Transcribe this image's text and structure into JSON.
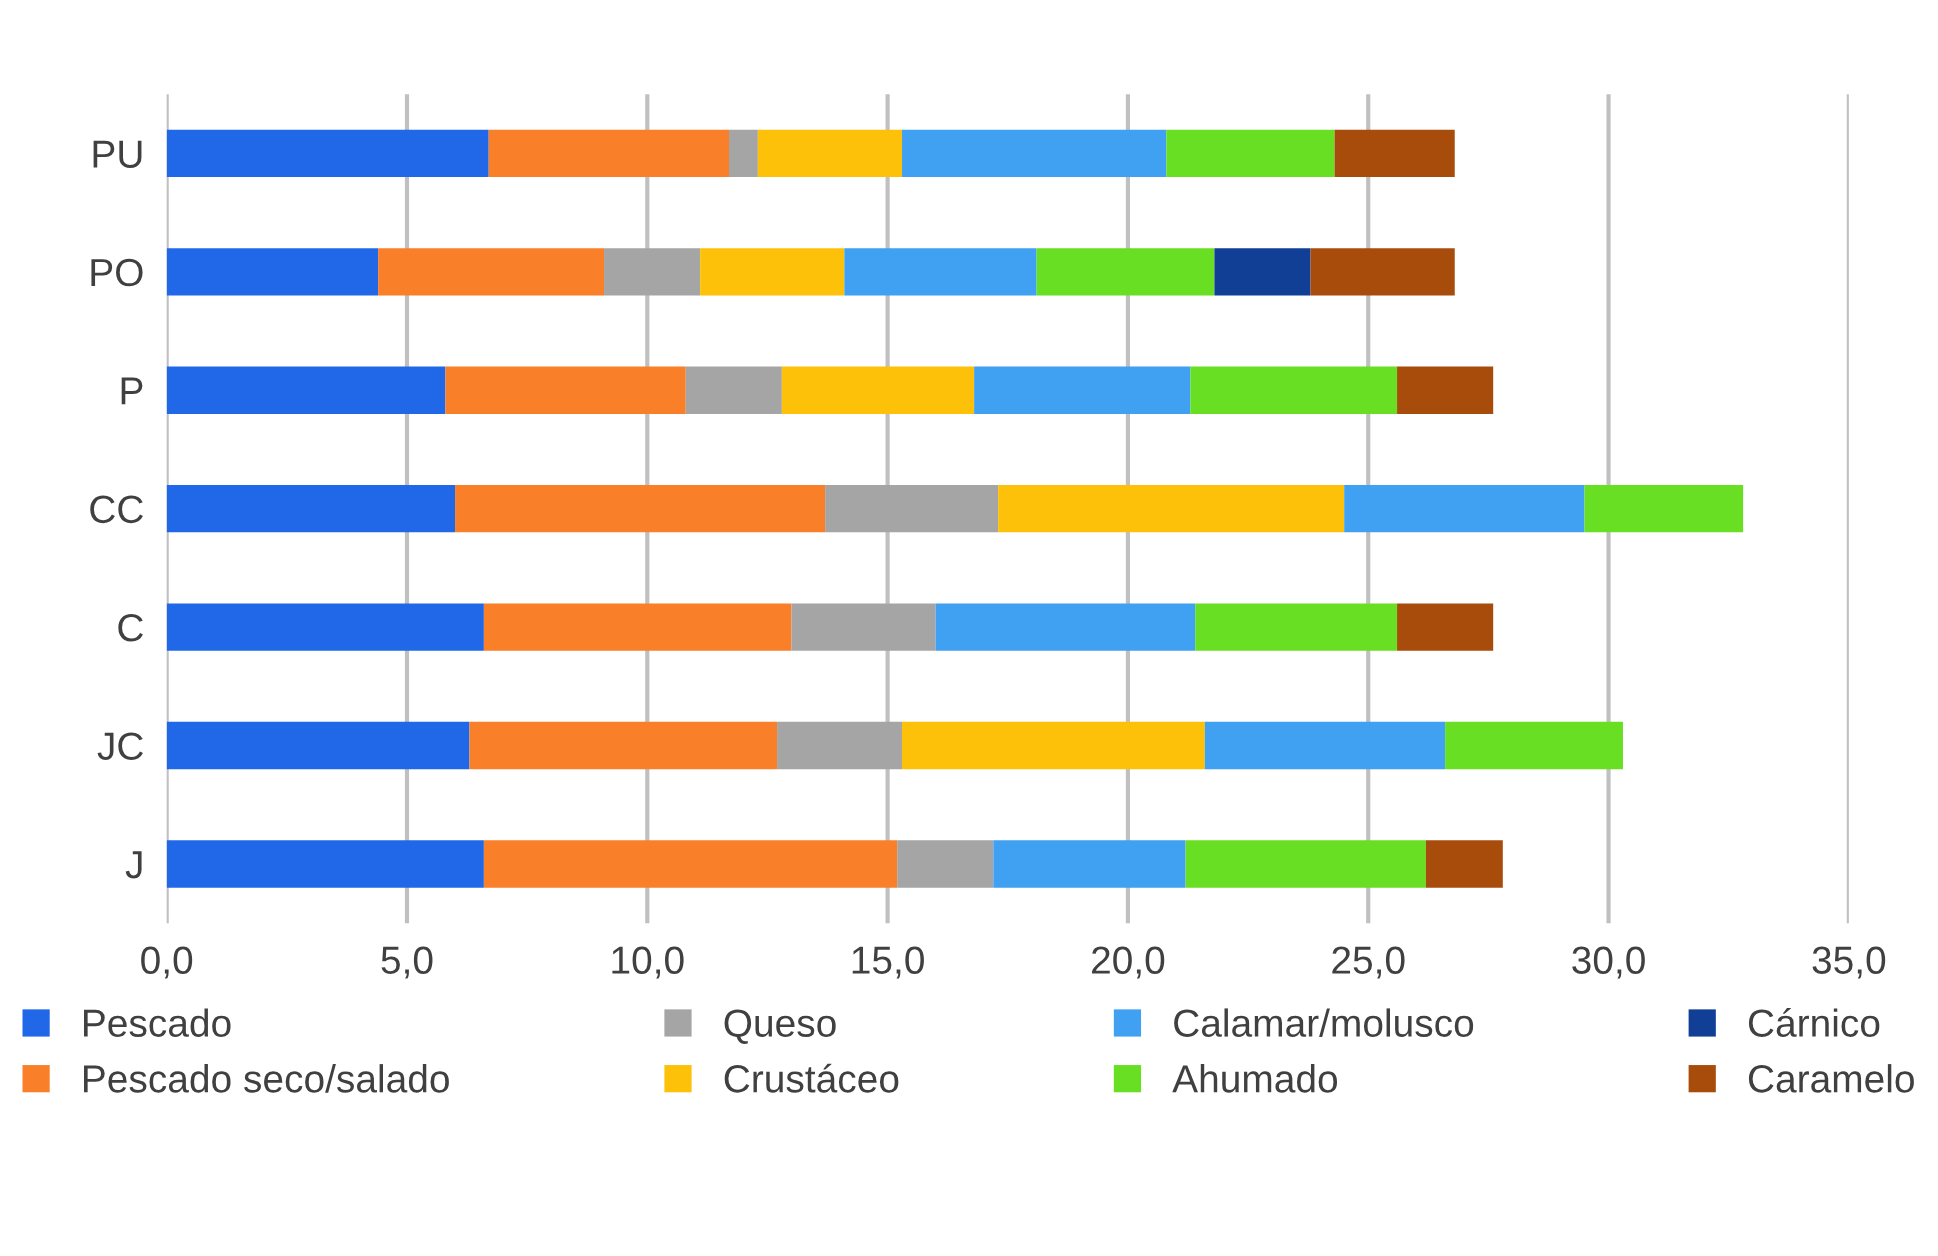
{
  "chart_data": {
    "type": "bar",
    "orientation": "horizontal",
    "stacked": true,
    "categories": [
      "PU",
      "PO",
      "P",
      "CC",
      "C",
      "JC",
      "J"
    ],
    "series": [
      {
        "name": "Pescado",
        "color": "#2068e8",
        "values": [
          6.7,
          4.4,
          5.8,
          6.0,
          6.6,
          6.3,
          6.6
        ]
      },
      {
        "name": "Pescado seco/salado",
        "color": "#f97f29",
        "values": [
          5.0,
          4.7,
          5.0,
          7.7,
          6.4,
          6.4,
          8.6
        ]
      },
      {
        "name": "Queso",
        "color": "#a5a5a5",
        "values": [
          0.6,
          2.0,
          2.0,
          3.6,
          3.0,
          2.6,
          2.0
        ]
      },
      {
        "name": "Crustáceo",
        "color": "#fdc10a",
        "values": [
          3.0,
          3.0,
          4.0,
          7.2,
          null,
          6.3,
          null
        ]
      },
      {
        "name": "Calamar/molusco",
        "color": "#40a0f2",
        "values": [
          5.5,
          4.0,
          4.5,
          5.0,
          5.4,
          5.0,
          4.0
        ]
      },
      {
        "name": "Ahumado",
        "color": "#68df22",
        "values": [
          3.5,
          3.7,
          4.3,
          3.3,
          4.2,
          3.7,
          5.0
        ]
      },
      {
        "name": "Cárnico",
        "color": "#123f96",
        "values": [
          null,
          2.0,
          null,
          null,
          null,
          null,
          null
        ]
      },
      {
        "name": "Caramelo",
        "color": "#a84c0c",
        "values": [
          2.5,
          3.0,
          2.0,
          null,
          2.0,
          null,
          1.6
        ]
      }
    ],
    "xlim": [
      0,
      35
    ],
    "xticks": [
      {
        "value": 0,
        "label": "0,0"
      },
      {
        "value": 5,
        "label": "5,0"
      },
      {
        "value": 10,
        "label": "10,0"
      },
      {
        "value": 15,
        "label": "15,0"
      },
      {
        "value": 20,
        "label": "20,0"
      },
      {
        "value": 25,
        "label": "25,0"
      },
      {
        "value": 30,
        "label": "30,0"
      },
      {
        "value": 35,
        "label": "35,0"
      }
    ],
    "grid": "x",
    "legend": "bottom"
  }
}
